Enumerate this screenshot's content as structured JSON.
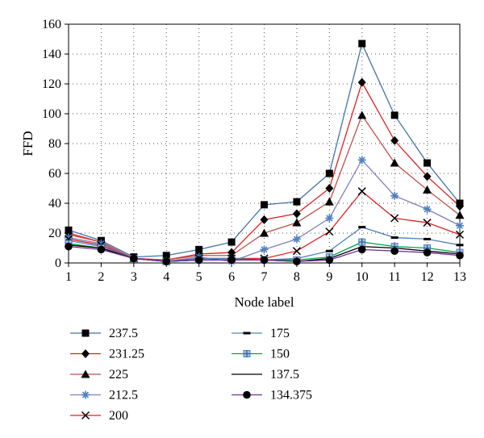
{
  "chart_data": {
    "type": "line",
    "title": "",
    "xlabel": "Node label",
    "ylabel": "FFD",
    "xlim": [
      1,
      13
    ],
    "ylim": [
      0,
      160
    ],
    "x_ticks": [
      "1",
      "2",
      "3",
      "4",
      "5",
      "6",
      "7",
      "8",
      "9",
      "10",
      "11",
      "12",
      "13"
    ],
    "y_ticks": [
      "0",
      "20",
      "40",
      "60",
      "80",
      "100",
      "120",
      "140",
      "160"
    ],
    "grid": "dotted vertical and horizontal",
    "legend_position": "bottom",
    "x": [
      1,
      2,
      3,
      4,
      5,
      6,
      7,
      8,
      9,
      10,
      11,
      12,
      13
    ],
    "series": [
      {
        "name": "237.5",
        "marker": "square",
        "color": "#4472a8",
        "marker_color": "#000000",
        "values": [
          22,
          15,
          4,
          5,
          9,
          14,
          39,
          41,
          60,
          147,
          99,
          67,
          40
        ]
      },
      {
        "name": "231.25",
        "marker": "diamond",
        "color": "#e02020",
        "marker_color": "#000000",
        "values": [
          20,
          14,
          3,
          2,
          6,
          7,
          29,
          33,
          50,
          121,
          82,
          58,
          38
        ]
      },
      {
        "name": "225",
        "marker": "triangle",
        "color": "#c0504d",
        "marker_color": "#000000",
        "values": [
          19,
          14,
          3,
          2,
          5,
          5,
          20,
          27,
          41,
          99,
          67,
          49,
          32
        ]
      },
      {
        "name": "212.5",
        "marker": "asterisk",
        "color": "#7f7fbf",
        "marker_color": "#4f81bd",
        "values": [
          17,
          13,
          3,
          1,
          4,
          1,
          9,
          16,
          30,
          69,
          45,
          36,
          25
        ]
      },
      {
        "name": "200",
        "marker": "x",
        "color": "#e02020",
        "marker_color": "#000000",
        "values": [
          16,
          12,
          3,
          1,
          3,
          3,
          3,
          8,
          21,
          48,
          30,
          27,
          19
        ]
      },
      {
        "name": "175",
        "marker": "dash",
        "color": "#4f81bd",
        "marker_color": "#000000",
        "values": [
          15,
          11,
          3,
          1,
          3,
          3,
          2,
          3,
          8,
          24,
          17,
          16,
          12
        ]
      },
      {
        "name": "150",
        "marker": "plus-square",
        "color": "#00a650",
        "marker_color": "#4f81bd",
        "values": [
          13,
          10,
          3,
          1,
          2,
          2,
          2,
          2,
          4,
          14,
          11,
          10,
          7
        ]
      },
      {
        "name": "137.5",
        "marker": "none",
        "color": "#000000",
        "marker_color": "#000000",
        "values": [
          12,
          10,
          3,
          1,
          2,
          2,
          2,
          1,
          3,
          11,
          10,
          8,
          6
        ]
      },
      {
        "name": "134.375",
        "marker": "circle",
        "color": "#7030a0",
        "marker_color": "#000000",
        "values": [
          11,
          9,
          3,
          1,
          2,
          2,
          2,
          1,
          2,
          9,
          8,
          7,
          5
        ]
      }
    ]
  }
}
